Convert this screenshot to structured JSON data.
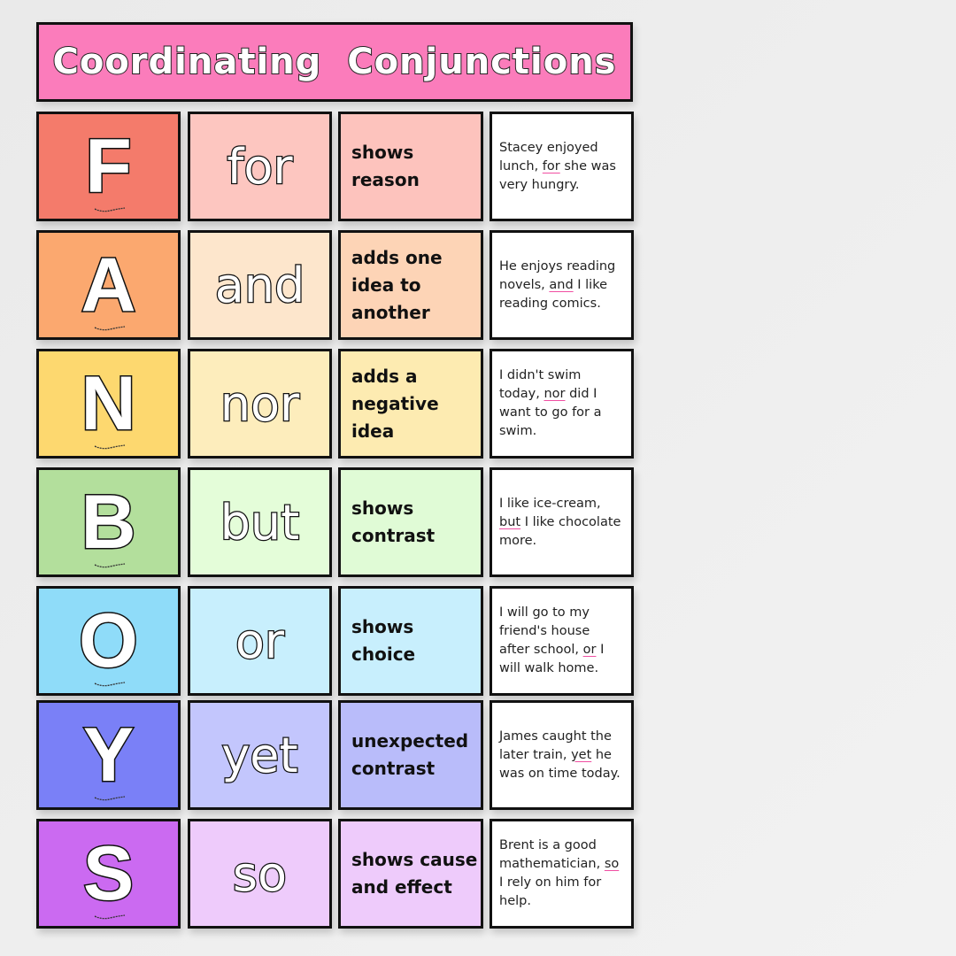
{
  "title": "Coordinating  Conjunctions",
  "rows": [
    {
      "letter": "F",
      "word": "for",
      "meaning": "shows reason",
      "example": {
        "before": "Stacey enjoyed lunch, ",
        "conj": "for",
        "after": " she was very hungry."
      },
      "colors": {
        "letter": "#f47b6b",
        "word": "#fdc6c0",
        "meaning": "#fdc3bd"
      }
    },
    {
      "letter": "A",
      "word": "and",
      "meaning": "adds one idea to another",
      "example": {
        "before": "He enjoys reading novels, ",
        "conj": "and",
        "after": " I like reading comics."
      },
      "colors": {
        "letter": "#fba86f",
        "word": "#fde6cc",
        "meaning": "#fdd4b6"
      }
    },
    {
      "letter": "N",
      "word": "nor",
      "meaning": "adds a negative idea",
      "example": {
        "before": "I didn't swim today, ",
        "conj": "nor",
        "after": " did I want to go for a swim."
      },
      "colors": {
        "letter": "#fdd86f",
        "word": "#fdedbc",
        "meaning": "#fdebb1"
      }
    },
    {
      "letter": "B",
      "word": "but",
      "meaning": "shows contrast",
      "example": {
        "before": "I like ice-cream, ",
        "conj": "but",
        "after": " I like chocolate more."
      },
      "colors": {
        "letter": "#b3df9c",
        "word": "#e4fdd9",
        "meaning": "#e0fbd6"
      }
    },
    {
      "letter": "O",
      "word": "or",
      "meaning": "shows choice",
      "example": {
        "before": "I will go to my friend's house after school, ",
        "conj": "or",
        "after": " I will walk home."
      },
      "colors": {
        "letter": "#8fdcf9",
        "word": "#c8effd",
        "meaning": "#c8effd"
      }
    },
    {
      "letter": "Y",
      "word": "yet",
      "meaning": "unexpected contrast",
      "example": {
        "before": "James caught the later train, ",
        "conj": "yet",
        "after": " he was on time today."
      },
      "colors": {
        "letter": "#7a80f7",
        "word": "#c3c6fd",
        "meaning": "#b9bcfa"
      }
    },
    {
      "letter": "S",
      "word": "so",
      "meaning": "shows cause and effect",
      "example": {
        "before": "Brent is a good mathematician, ",
        "conj": "so",
        "after": " I rely on him for help."
      },
      "colors": {
        "letter": "#cb6af1",
        "word": "#eecbfb",
        "meaning": "#eecbfb"
      }
    }
  ]
}
